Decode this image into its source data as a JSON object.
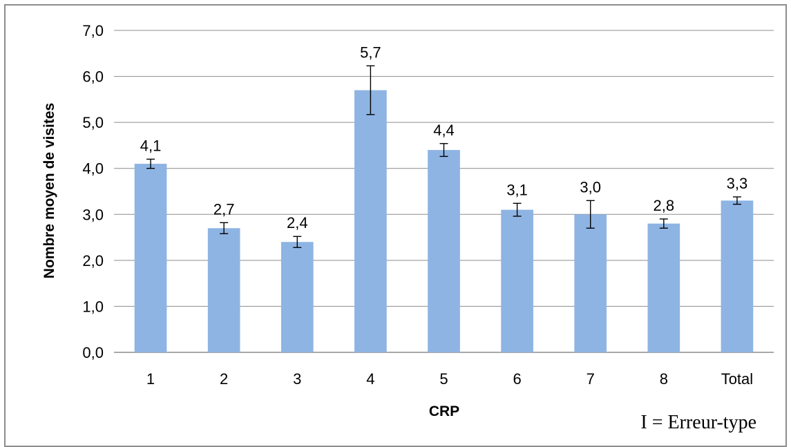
{
  "chart_data": {
    "type": "bar",
    "categories": [
      "1",
      "2",
      "3",
      "4",
      "5",
      "6",
      "7",
      "8",
      "Total"
    ],
    "values": [
      4.1,
      2.7,
      2.4,
      5.7,
      4.4,
      3.1,
      3.0,
      2.8,
      3.3
    ],
    "value_labels": [
      "4,1",
      "2,7",
      "2,4",
      "5,7",
      "4,4",
      "3,1",
      "3,0",
      "2,8",
      "3,3"
    ],
    "error": [
      0.1,
      0.12,
      0.12,
      0.53,
      0.14,
      0.14,
      0.3,
      0.1,
      0.08
    ],
    "xlabel": "CRP",
    "ylabel": "Nombre moyen de visites",
    "ylim": [
      0,
      7
    ],
    "yticks": [
      0,
      1,
      2,
      3,
      4,
      5,
      6,
      7
    ],
    "ytick_labels": [
      "0,0",
      "1,0",
      "2,0",
      "3,0",
      "4,0",
      "5,0",
      "6,0",
      "7,0"
    ],
    "grid": true,
    "bar_color": "#8eb4e3",
    "grid_color": "#8c8c8c",
    "note": "I = Erreur-type"
  }
}
